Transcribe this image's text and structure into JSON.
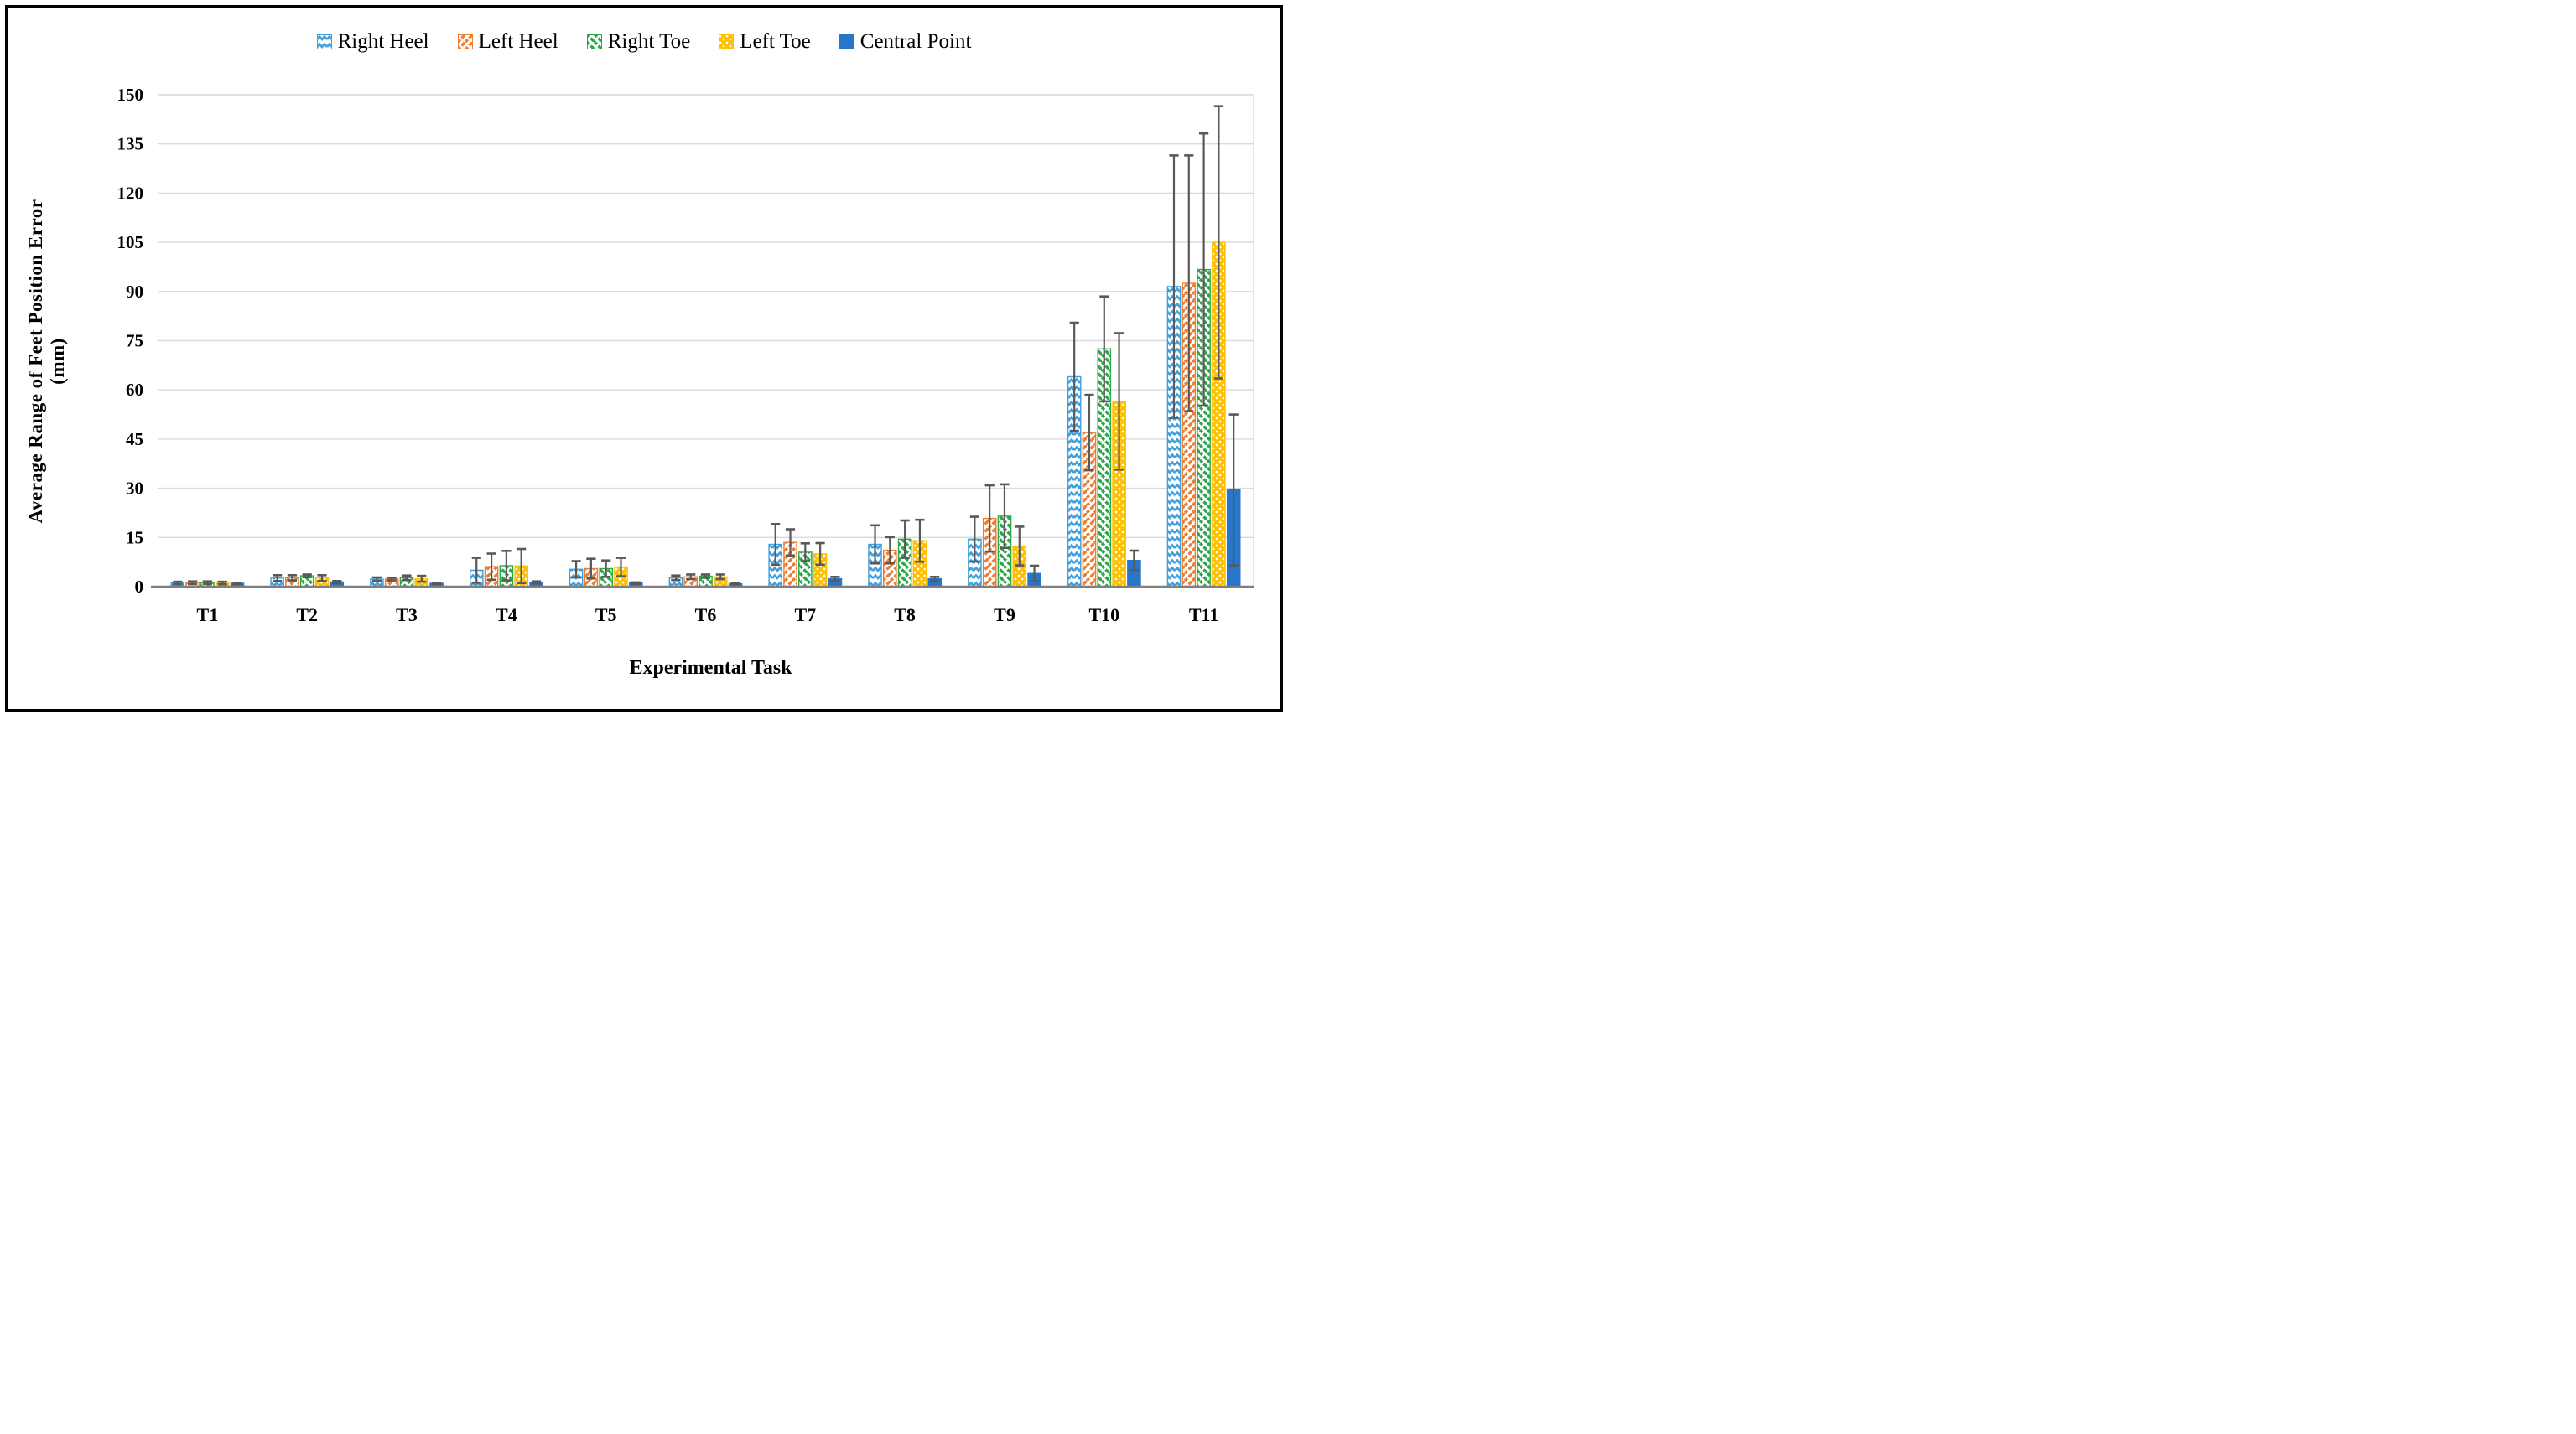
{
  "frame": {
    "background": "#ffffff",
    "border_color": "#000000"
  },
  "axes": {
    "x_title": "Experimental Task",
    "y_title": "Average Range of Feet Position Error (mm)",
    "y_min": 0,
    "y_max": 150,
    "y_tick_step": 15,
    "gridline_color": "#d9d9d9",
    "axis_line_color": "#7f7f7f",
    "error_bar_color": "#595959"
  },
  "chart_data": {
    "type": "bar",
    "title": "",
    "xlabel": "Experimental Task",
    "ylabel": "Average Range of Feet Position Error (mm)",
    "categories": [
      "T1",
      "T2",
      "T3",
      "T4",
      "T5",
      "T6",
      "T7",
      "T8",
      "T9",
      "T10",
      "T11"
    ],
    "ylim": [
      0,
      150
    ],
    "ytick_step": 15,
    "grid": true,
    "legend_position": "top",
    "series": [
      {
        "name": "Right Heel",
        "color": "#41A0DC",
        "pattern": "chevron",
        "values": [
          1.1,
          2.6,
          2.3,
          5.0,
          5.3,
          2.7,
          12.9,
          12.9,
          14.5,
          64.0,
          91.5
        ],
        "errors": [
          0.4,
          0.9,
          0.5,
          3.8,
          2.5,
          0.7,
          6.2,
          5.8,
          6.8,
          16.5,
          40.0
        ]
      },
      {
        "name": "Left Heel",
        "color": "#ED7D31",
        "pattern": "diag-up",
        "values": [
          1.2,
          2.7,
          2.3,
          6.1,
          5.5,
          3.0,
          13.5,
          11.1,
          20.8,
          47.0,
          92.5
        ],
        "errors": [
          0.4,
          0.8,
          0.4,
          4.0,
          3.0,
          0.7,
          4.0,
          4.0,
          10.1,
          11.5,
          39.0
        ]
      },
      {
        "name": "Right Toe",
        "color": "#2BA84A",
        "pattern": "diag-down",
        "values": [
          1.2,
          3.3,
          2.7,
          6.4,
          5.5,
          3.2,
          10.5,
          14.5,
          21.5,
          72.5,
          96.7
        ],
        "errors": [
          0.4,
          0.4,
          0.7,
          4.5,
          2.5,
          0.5,
          2.7,
          5.7,
          9.7,
          16.0,
          41.5
        ]
      },
      {
        "name": "Left Toe",
        "color": "#FFC000",
        "pattern": "dots",
        "values": [
          1.1,
          2.6,
          2.4,
          6.3,
          6.0,
          3.0,
          10.0,
          14.0,
          12.4,
          56.5,
          105.0
        ],
        "errors": [
          0.4,
          0.9,
          0.9,
          5.2,
          2.8,
          0.7,
          3.3,
          6.4,
          5.9,
          20.8,
          41.5
        ]
      },
      {
        "name": "Central Point",
        "color": "#2776CB",
        "pattern": "solid",
        "values": [
          1.0,
          1.4,
          1.0,
          1.3,
          1.1,
          0.9,
          2.4,
          2.4,
          4.0,
          8.0,
          29.5
        ],
        "errors": [
          0.2,
          0.3,
          0.2,
          0.3,
          0.2,
          0.2,
          0.6,
          0.6,
          2.4,
          3.0,
          23.0
        ]
      }
    ]
  }
}
